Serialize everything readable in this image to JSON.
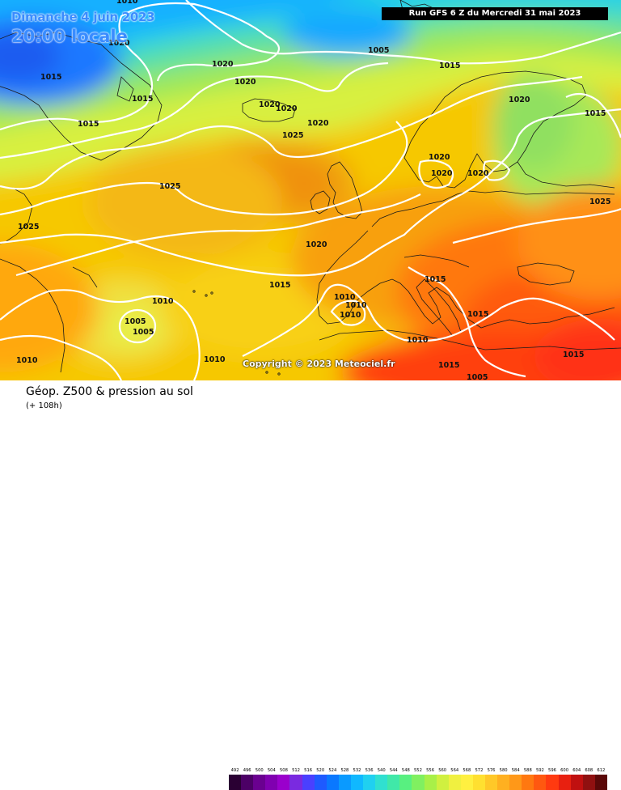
{
  "header": {
    "date": "Dimanche 4 juin 2023",
    "time": "20:00 locale",
    "run": "Run GFS 6 Z du Mercredi 31 mai 2023"
  },
  "copyright": "Copyright © 2023 Meteociel.fr",
  "footer": {
    "title": "Géop. Z500 & pression au sol",
    "subtitle": "(+ 108h)"
  },
  "isobar_labels": [
    {
      "text": "1010"
    },
    {
      "text": "1020"
    },
    {
      "text": "1005"
    },
    {
      "text": "1015"
    },
    {
      "text": "1015"
    },
    {
      "text": "1020"
    },
    {
      "text": "1020"
    },
    {
      "text": "1015"
    },
    {
      "text": "1020"
    },
    {
      "text": "1020"
    },
    {
      "text": "1020"
    },
    {
      "text": "1025"
    },
    {
      "text": "1020"
    },
    {
      "text": "1015"
    },
    {
      "text": "1020"
    },
    {
      "text": "1020"
    },
    {
      "text": "1025"
    },
    {
      "text": "1020"
    },
    {
      "text": "1025"
    },
    {
      "text": "1025"
    },
    {
      "text": "1020"
    },
    {
      "text": "1015"
    },
    {
      "text": "1015"
    },
    {
      "text": "1010"
    },
    {
      "text": "1010"
    },
    {
      "text": "1010"
    },
    {
      "text": "1010"
    },
    {
      "text": "1005"
    },
    {
      "text": "1005"
    },
    {
      "text": "1010"
    },
    {
      "text": "1015"
    },
    {
      "text": "1010"
    },
    {
      "text": "1015"
    },
    {
      "text": "1010"
    },
    {
      "text": "1005"
    },
    {
      "text": "1015"
    },
    {
      "text": "1015"
    }
  ],
  "legend": {
    "labels": [
      "492",
      "496",
      "500",
      "504",
      "508",
      "512",
      "516",
      "520",
      "524",
      "528",
      "532",
      "536",
      "540",
      "544",
      "548",
      "552",
      "556",
      "560",
      "564",
      "568",
      "572",
      "576",
      "580",
      "584",
      "588",
      "592",
      "596",
      "600",
      "604",
      "608",
      "612"
    ],
    "colors": [
      "#2a0033",
      "#4c0066",
      "#6a0090",
      "#8000b0",
      "#9a00cc",
      "#7a2ae0",
      "#4a40ff",
      "#1e5aff",
      "#0a78ff",
      "#0a9aff",
      "#10b8ff",
      "#20d0f0",
      "#30e0d0",
      "#40e8a8",
      "#58f080",
      "#80f060",
      "#a8f048",
      "#d0f040",
      "#f0f040",
      "#fff040",
      "#ffe030",
      "#ffc828",
      "#ffb020",
      "#ff9818",
      "#ff7810",
      "#ff5810",
      "#ff3a10",
      "#e82010",
      "#c01010",
      "#901010",
      "#5a0808"
    ]
  }
}
